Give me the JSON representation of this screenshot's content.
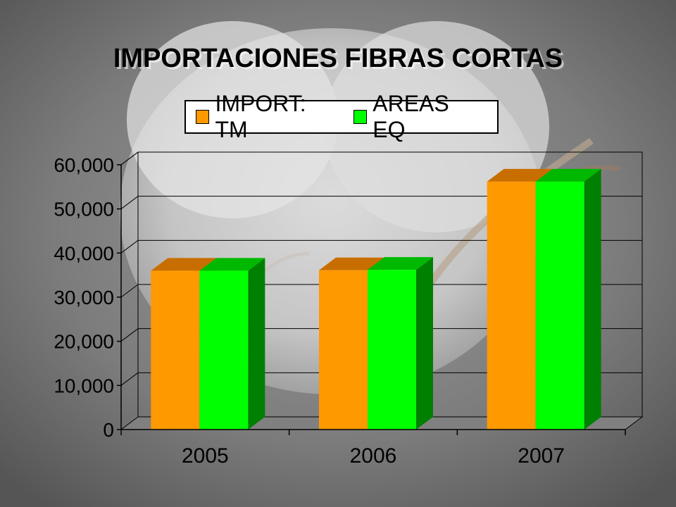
{
  "title": "IMPORTACIONES FIBRAS CORTAS",
  "colors": {
    "series_front": [
      "#ff9900",
      "#00ff00"
    ],
    "series_side": [
      "#b35900",
      "#008000"
    ],
    "series_top": [
      "#c86e00",
      "#00b800"
    ]
  },
  "chart_data": {
    "type": "bar",
    "title": "IMPORTACIONES FIBRAS CORTAS",
    "categories": [
      "2005",
      "2006",
      "2007"
    ],
    "series": [
      {
        "name": "IMPORT: TM",
        "values": [
          36000,
          36100,
          56200
        ]
      },
      {
        "name": "AREAS EQ",
        "values": [
          36000,
          36200,
          56200
        ]
      }
    ],
    "ylim": [
      0,
      60000
    ],
    "yticks": [
      0,
      10000,
      20000,
      30000,
      40000,
      50000,
      60000
    ],
    "ytick_labels": [
      "0",
      "10,000",
      "20,000",
      "30,000",
      "40,000",
      "50,000",
      "60,000"
    ],
    "grid": true,
    "legend_position": "top"
  }
}
